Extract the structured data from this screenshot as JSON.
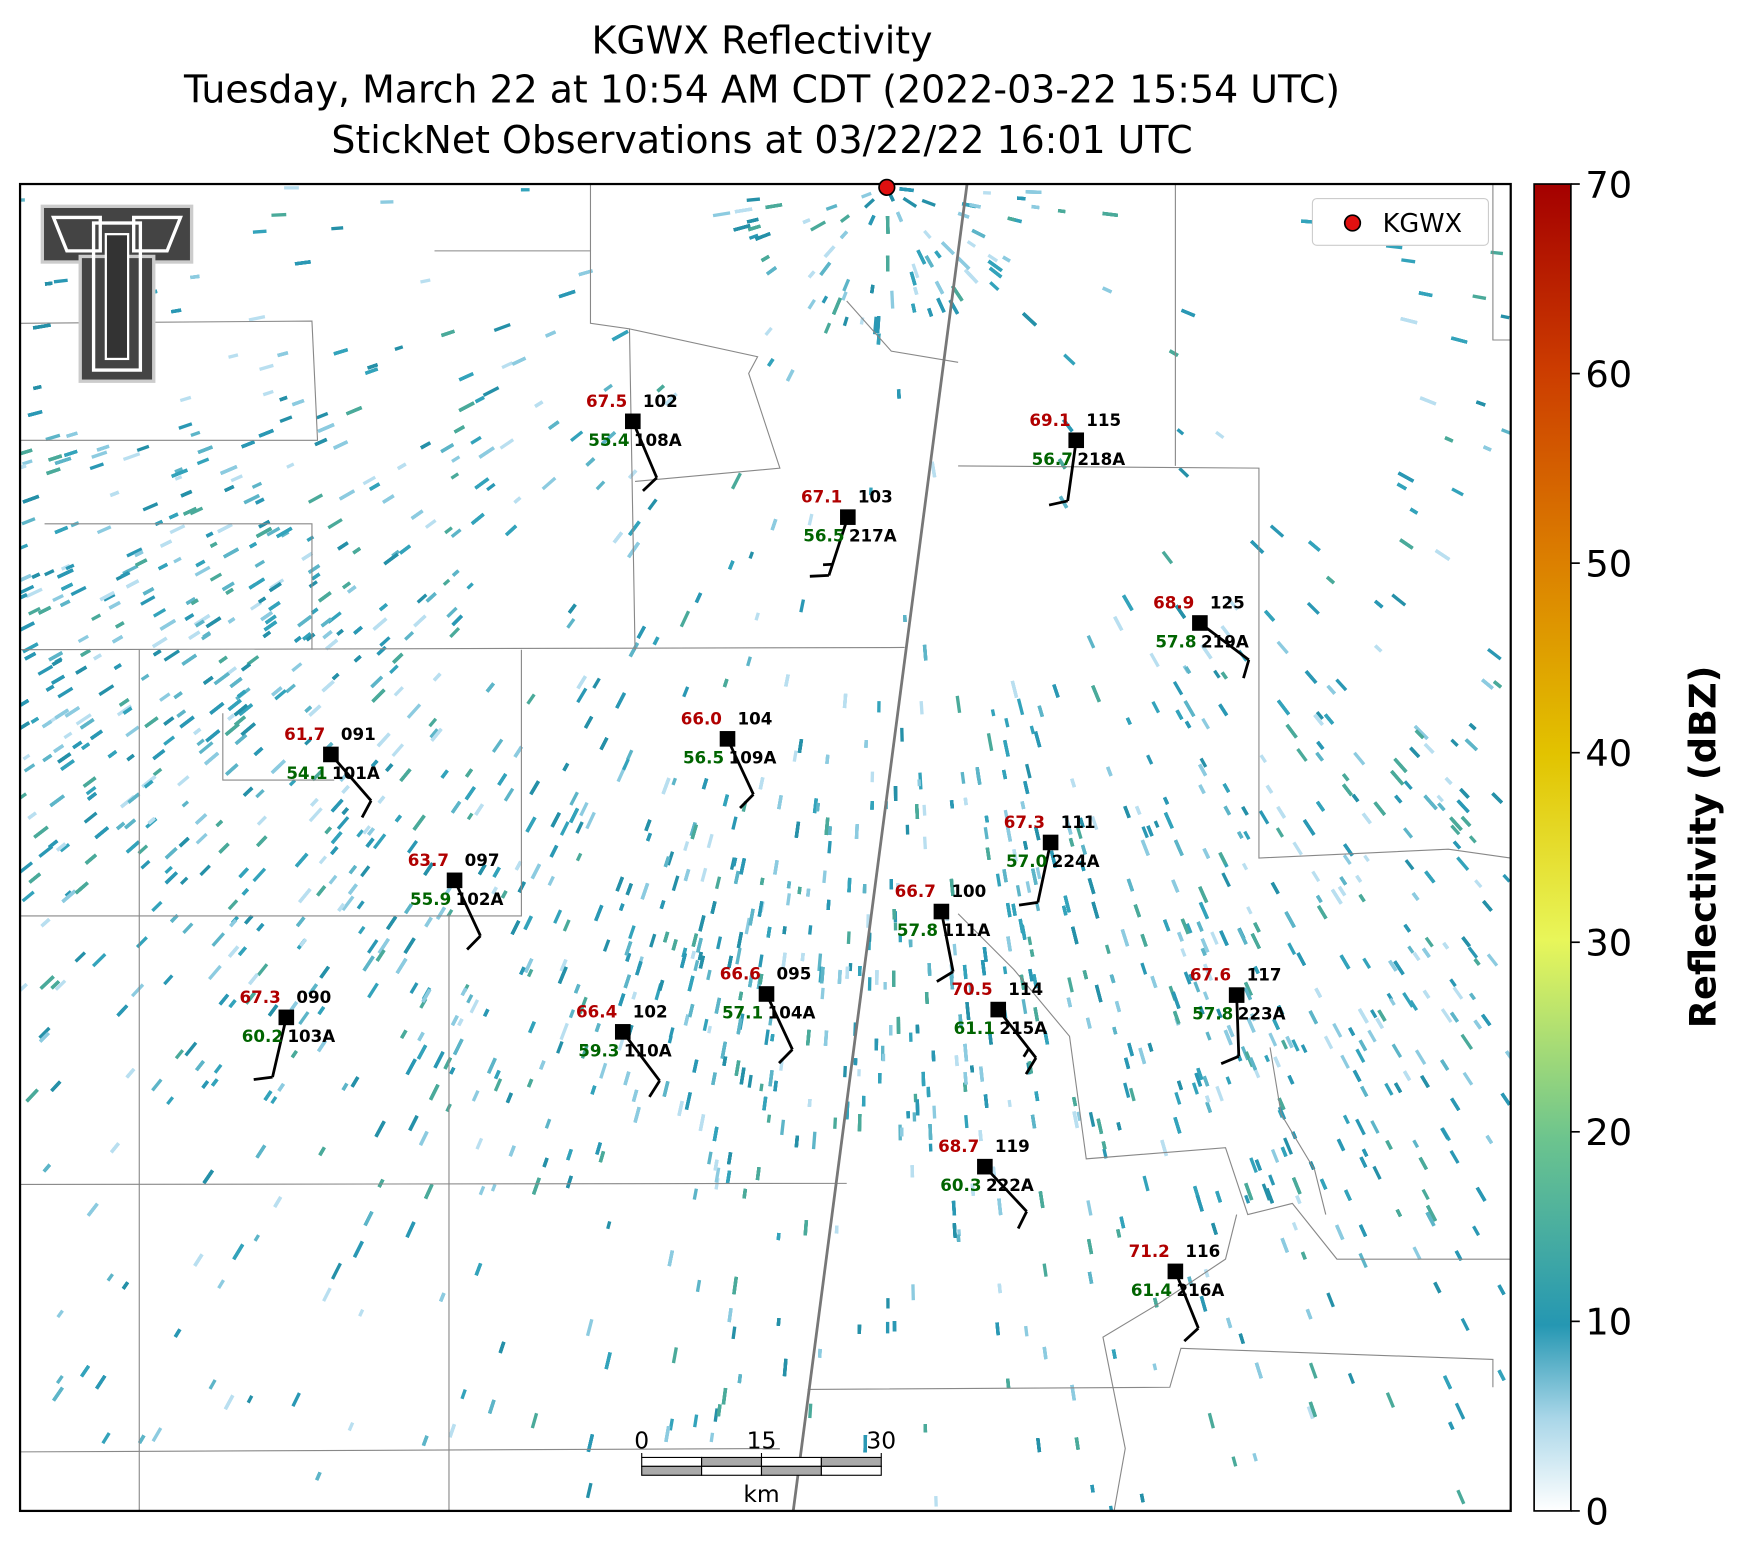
{
  "title_lines": [
    "KGWX Reflectivity",
    "Tuesday, March 22 at 10:54 AM CDT (2022-03-22 15:54 UTC)",
    "StickNet Observations at 03/22/22 16:01 UTC"
  ],
  "legend": {
    "label": "KGWX"
  },
  "stations": [
    {
      "id": "108A",
      "temperature": "67.5",
      "code": "102",
      "dewpoint": "55.4",
      "wind_dir": 157,
      "wind_speed": 10
    },
    {
      "id": "217A",
      "temperature": "67.1",
      "code": "103",
      "dewpoint": "56.5",
      "wind_dir": 198,
      "wind_speed": 15
    },
    {
      "id": "218A",
      "temperature": "69.1",
      "code": "115",
      "dewpoint": "56.7",
      "wind_dir": 188,
      "wind_speed": 10
    },
    {
      "id": "219A",
      "temperature": "68.9",
      "code": "125",
      "dewpoint": "57.8",
      "wind_dir": 127,
      "wind_speed": 10
    },
    {
      "id": "101A",
      "temperature": "61.7",
      "code": "091",
      "dewpoint": "54.1",
      "wind_dir": 139,
      "wind_speed": 10
    },
    {
      "id": "109A",
      "temperature": "66.0",
      "code": "104",
      "dewpoint": "56.5",
      "wind_dir": 155,
      "wind_speed": 10
    },
    {
      "id": "224A",
      "temperature": "67.3",
      "code": "111",
      "dewpoint": "57.0",
      "wind_dir": 192,
      "wind_speed": 10
    },
    {
      "id": "102A",
      "temperature": "63.7",
      "code": "097",
      "dewpoint": "55.9",
      "wind_dir": 155,
      "wind_speed": 10
    },
    {
      "id": "111A",
      "temperature": "66.7",
      "code": "100",
      "dewpoint": "57.8",
      "wind_dir": 169,
      "wind_speed": 10
    },
    {
      "id": "103A",
      "temperature": "67.3",
      "code": "090",
      "dewpoint": "60.2",
      "wind_dir": 193,
      "wind_speed": 10
    },
    {
      "id": "110A",
      "temperature": "66.4",
      "code": "102",
      "dewpoint": "59.3",
      "wind_dir": 143,
      "wind_speed": 10
    },
    {
      "id": "104A",
      "temperature": "66.6",
      "code": "095",
      "dewpoint": "57.1",
      "wind_dir": 155,
      "wind_speed": 10
    },
    {
      "id": "215A",
      "temperature": "70.5",
      "code": "114",
      "dewpoint": "61.1",
      "wind_dir": 142,
      "wind_speed": 15
    },
    {
      "id": "223A",
      "temperature": "67.6",
      "code": "117",
      "dewpoint": "57.8",
      "wind_dir": 178,
      "wind_speed": 10
    },
    {
      "id": "222A",
      "temperature": "68.7",
      "code": "119",
      "dewpoint": "60.3",
      "wind_dir": 137,
      "wind_speed": 10
    },
    {
      "id": "216A",
      "temperature": "71.2",
      "code": "116",
      "dewpoint": "61.4",
      "wind_dir": 158,
      "wind_speed": 10
    }
  ],
  "colorbar": {
    "label": "Reflectivity (dBZ)",
    "lim": [
      0,
      70
    ],
    "ticks": [
      0,
      10,
      20,
      30,
      40,
      50,
      60,
      70
    ]
  },
  "scale_bar": {
    "lim": [
      0,
      30
    ],
    "ticks": [
      0,
      15,
      30
    ],
    "unit": "km"
  }
}
